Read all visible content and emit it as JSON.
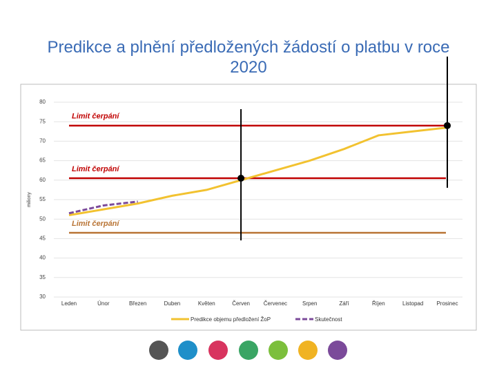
{
  "chart_data": {
    "type": "line",
    "title": "Predikce a plnění předložených žádostí o platbu v roce 2020",
    "y_label": "miliony",
    "categories": [
      "Leden",
      "Únor",
      "Březen",
      "Duben",
      "Květen",
      "Červen",
      "Červenec",
      "Srpen",
      "Září",
      "Říjen",
      "Listopad",
      "Prosinec"
    ],
    "series": [
      {
        "name": "Predikce objemu předložení ŽoP",
        "color": "#f2c230",
        "dash": false,
        "values": [
          51,
          52.5,
          54,
          56,
          57.5,
          60,
          62.5,
          65,
          68,
          71.5,
          72.5,
          73.5
        ]
      },
      {
        "name": "Skutečnost",
        "color": "#7b4a9a",
        "dash": true,
        "values": [
          51.5,
          53.5,
          54.5,
          null,
          null,
          null,
          null,
          null,
          null,
          null,
          null,
          null
        ]
      }
    ],
    "limits": [
      {
        "label": "Limit čerpání",
        "value": 74,
        "color": "#c00000"
      },
      {
        "label": "Limit čerpání",
        "value": 60.5,
        "color": "#c00000"
      },
      {
        "label": "Limit čerpání",
        "value": 46.5,
        "color": "#b87333"
      }
    ],
    "markers": [
      {
        "x": "Červen",
        "y": 60.5
      },
      {
        "x": "Prosinec",
        "y": 74
      }
    ],
    "ylim": [
      30,
      80
    ],
    "yticks": [
      30,
      35,
      40,
      45,
      50,
      55,
      60,
      65,
      70,
      75,
      80
    ],
    "grid": true
  }
}
